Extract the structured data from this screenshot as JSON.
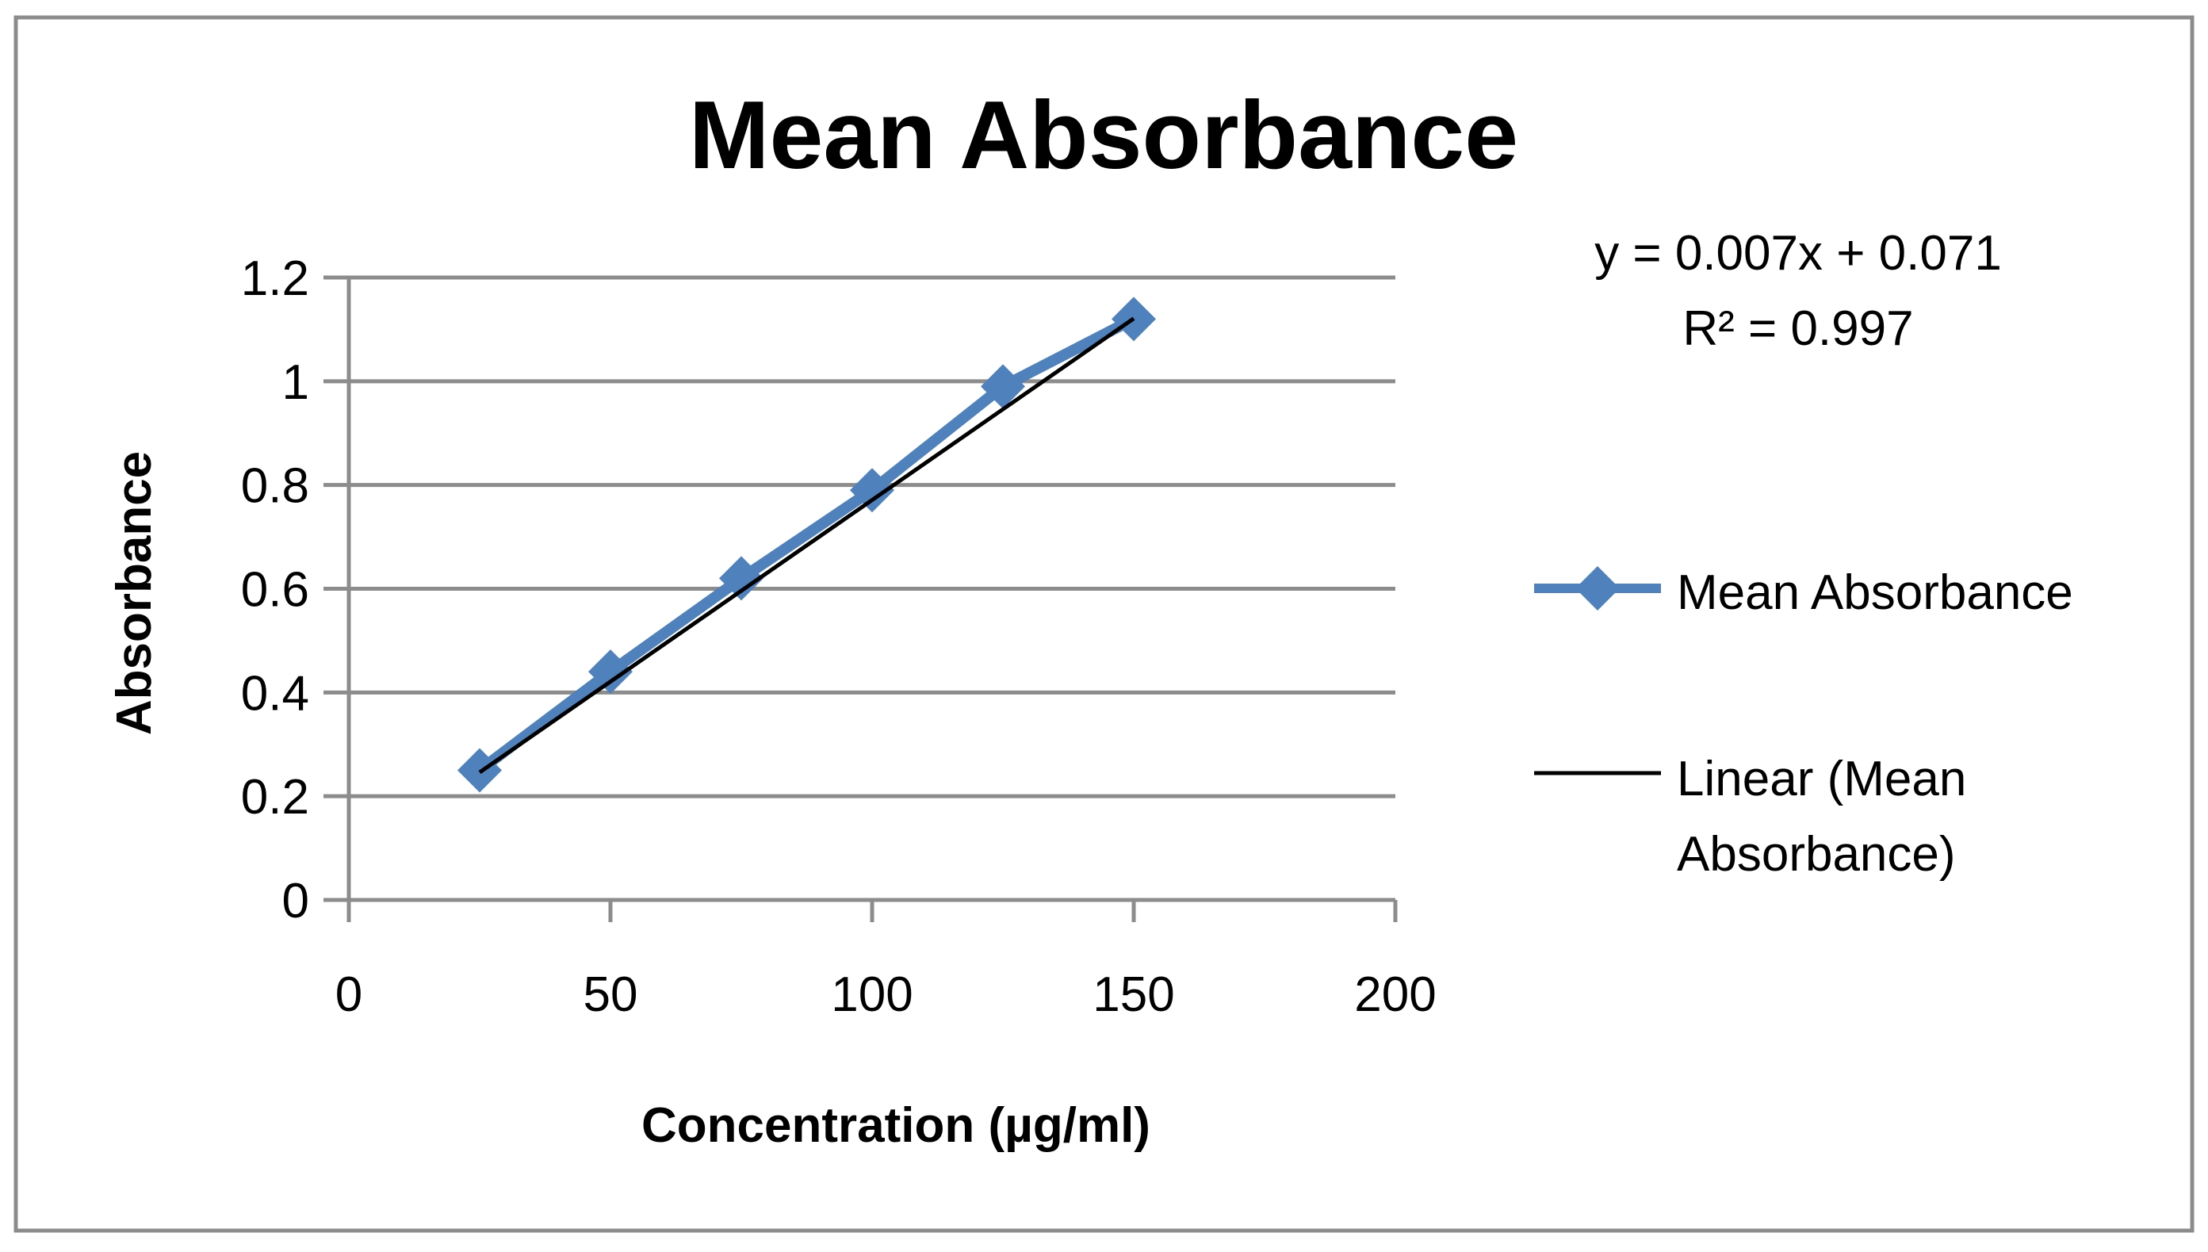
{
  "chart_data": {
    "type": "line",
    "title": "Mean Absorbance",
    "xlabel": "Concentration (µg/ml)",
    "ylabel": "Absorbance",
    "xlim": [
      0,
      200
    ],
    "ylim": [
      0,
      1.2
    ],
    "x_ticks": [
      "0",
      "50",
      "100",
      "150",
      "200"
    ],
    "y_ticks": [
      "0",
      "0.2",
      "0.4",
      "0.6",
      "0.8",
      "1",
      "1.2"
    ],
    "grid": "horizontal",
    "series": [
      {
        "name": "Mean Absorbance",
        "x": [
          25,
          50,
          75,
          100,
          125,
          150
        ],
        "values": [
          0.25,
          0.44,
          0.62,
          0.79,
          0.99,
          1.12
        ],
        "color": "#4f81bd",
        "marker": "diamond"
      }
    ],
    "trendline": {
      "name": "Linear (Mean Absorbance)",
      "type": "linear",
      "slope": 0.007,
      "intercept": 0.071,
      "x_range": [
        25,
        150
      ],
      "color": "#000000"
    },
    "annotations": {
      "equation": "y = 0.007x + 0.071",
      "r_squared": "R² = 0.997"
    },
    "legend": {
      "position": "right",
      "entries": [
        "Mean Absorbance",
        "Linear (Mean",
        "Absorbance)"
      ]
    }
  }
}
